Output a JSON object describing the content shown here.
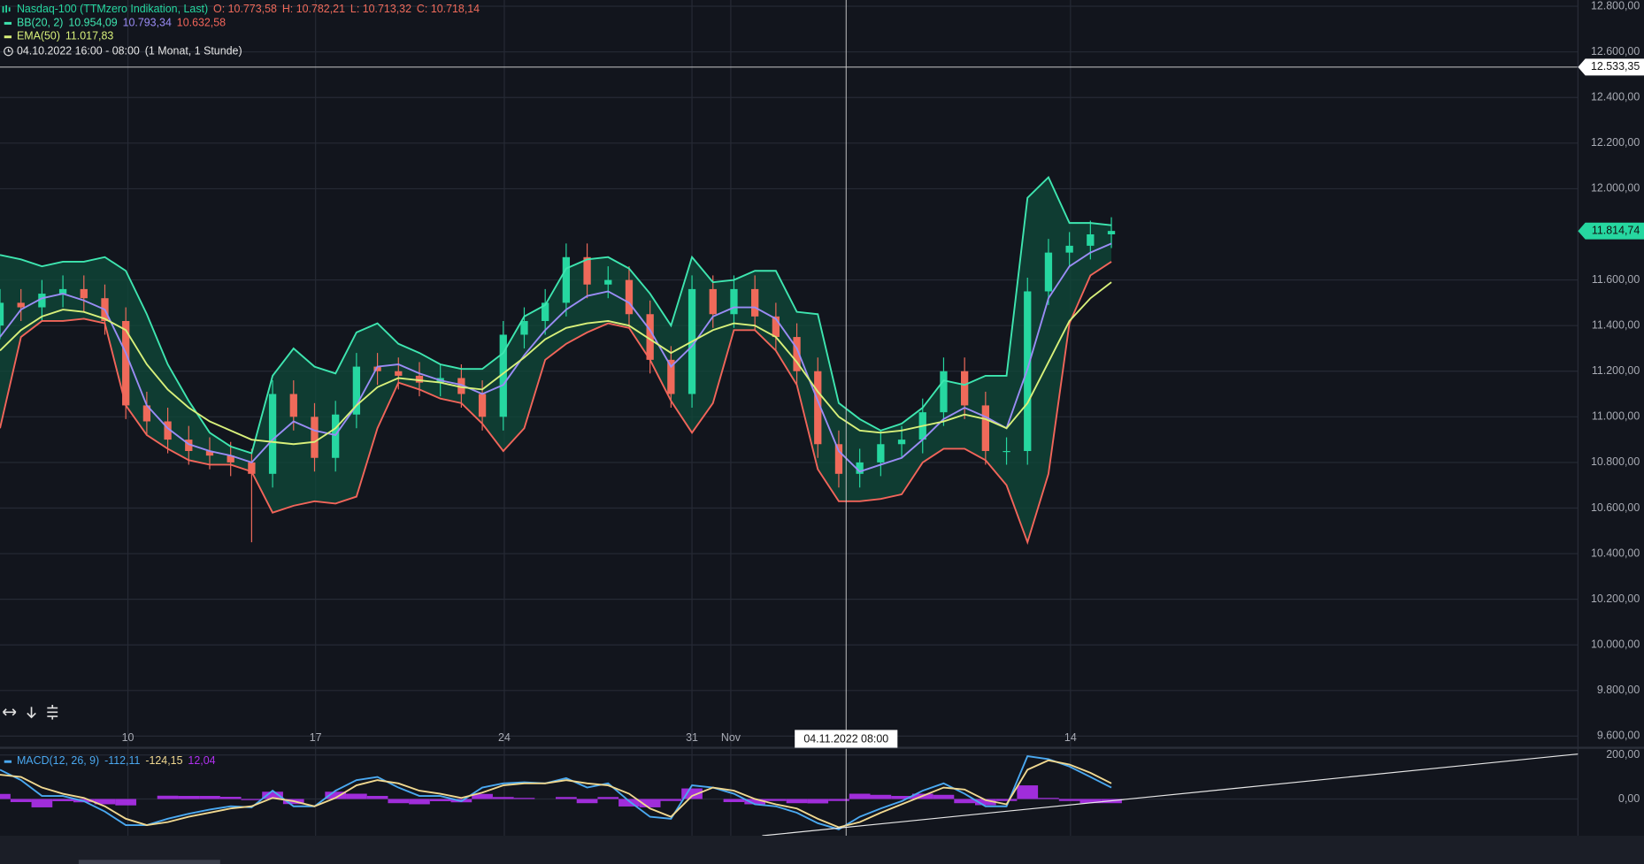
{
  "chart_data": [
    {
      "type": "candlestick",
      "title": "Nasdaq-100 (TTMzero Indikation, Last)",
      "readout": [
        "O: 10.773,58",
        "H: 10.782,21",
        "L: 10.713,32",
        "C: 10.718,14"
      ],
      "legend": [
        {
          "label": "BB(20, 2)",
          "color": "#3ee6b0",
          "values": [
            {
              "text": "10.954,09",
              "color": "#3ee6b0"
            },
            {
              "text": "10.793,34",
              "color": "#9a8cf5"
            },
            {
              "text": "10.632,58",
              "color": "#f2655a"
            }
          ]
        },
        {
          "label": "EMA(50)",
          "color": "#d8f07a",
          "values": [
            {
              "text": "11.017,83",
              "color": "#d8f07a"
            }
          ]
        }
      ],
      "range_note": [
        "04.10.2022 16:00 - 08:00",
        "(1 Monat, 1 Stunde)"
      ],
      "x": [
        0,
        1,
        2,
        3,
        4,
        5,
        6,
        7,
        8,
        9,
        10,
        11,
        12,
        13,
        14,
        15,
        16,
        17,
        18,
        19,
        20,
        21,
        22,
        23,
        24,
        25,
        26,
        27,
        28,
        29,
        30,
        31,
        32,
        33,
        34,
        35,
        36,
        37,
        38,
        39,
        40,
        41,
        42,
        43,
        44,
        45,
        46,
        47,
        48,
        49,
        50,
        51,
        52,
        53
      ],
      "xlim": [
        0,
        75.25
      ],
      "xticks": [
        {
          "value": 6.1,
          "label": "10"
        },
        {
          "value": 15.05,
          "label": "17"
        },
        {
          "value": 24.05,
          "label": "24"
        },
        {
          "value": 33,
          "label": "31"
        },
        {
          "value": 34.85,
          "label": "Nov"
        },
        {
          "value": 51.05,
          "label": "14"
        }
      ],
      "ylim": [
        9549,
        12827.5
      ],
      "yticks": [
        {
          "value": 12800,
          "label": "12.800,00"
        },
        {
          "value": 12600,
          "label": "12.600,00"
        },
        {
          "value": 12400,
          "label": "12.400,00"
        },
        {
          "value": 12200,
          "label": "12.200,00"
        },
        {
          "value": 12000,
          "label": "12.000,00"
        },
        {
          "value": 11600,
          "label": "11.600,00"
        },
        {
          "value": 11400,
          "label": "11.400,00"
        },
        {
          "value": 11200,
          "label": "11.200,00"
        },
        {
          "value": 11000,
          "label": "11.000,00"
        },
        {
          "value": 10800,
          "label": "10.800,00"
        },
        {
          "value": 10600,
          "label": "10.600,00"
        },
        {
          "value": 10400,
          "label": "10.400,00"
        },
        {
          "value": 10200,
          "label": "10.200,00"
        },
        {
          "value": 10000,
          "label": "10.000,00"
        },
        {
          "value": 9800,
          "label": "9.800,00"
        },
        {
          "value": 9600,
          "label": "9.600,00"
        }
      ],
      "grid": true,
      "up_color": "#26d7a0",
      "down_color": "#ef6a5a",
      "band_color": "#0f4a3a",
      "open": [
        11400,
        11500,
        11480,
        11540,
        11560,
        11520,
        11420,
        11050,
        10980,
        10900,
        10850,
        10830,
        10800,
        10750,
        11100,
        11000,
        10820,
        11010,
        11220,
        11200,
        11180,
        11150,
        11170,
        11100,
        11000,
        11360,
        11420,
        11500,
        11700,
        11580,
        11600,
        11450,
        11250,
        11100,
        11560,
        11450,
        11560,
        11440,
        11350,
        11200,
        10880,
        10750,
        10800,
        10880,
        10900,
        11020,
        11200,
        11050,
        10850,
        10850,
        11550,
        11720,
        11750,
        11800
      ],
      "high": [
        11560,
        11560,
        11600,
        11620,
        11620,
        11580,
        11480,
        11110,
        11040,
        10960,
        10910,
        10890,
        10860,
        11160,
        11160,
        11060,
        11070,
        11280,
        11280,
        11260,
        11240,
        11230,
        11230,
        11160,
        11420,
        11480,
        11560,
        11760,
        11760,
        11660,
        11660,
        11510,
        11310,
        11620,
        11620,
        11620,
        11620,
        11500,
        11410,
        11260,
        10940,
        10860,
        10940,
        10960,
        11080,
        11260,
        11260,
        11110,
        10910,
        11610,
        11780,
        11810,
        11860,
        11875
      ],
      "low": [
        11340,
        11420,
        11420,
        11480,
        11460,
        11360,
        10990,
        10920,
        10840,
        10790,
        10770,
        10740,
        10450,
        10690,
        10940,
        10760,
        10760,
        10950,
        11140,
        11120,
        11090,
        11090,
        11040,
        10940,
        10940,
        11300,
        11360,
        11440,
        11520,
        11520,
        11390,
        11190,
        11040,
        11040,
        11390,
        11390,
        11380,
        11290,
        11140,
        10820,
        10690,
        10690,
        10740,
        10820,
        10840,
        10960,
        10990,
        10790,
        10790,
        10790,
        11490,
        11660,
        11690,
        11740
      ],
      "close": [
        11500,
        11480,
        11540,
        11560,
        11520,
        11420,
        11050,
        10980,
        10900,
        10850,
        10830,
        10800,
        10750,
        11100,
        11000,
        10820,
        11010,
        11220,
        11200,
        11180,
        11150,
        11170,
        11100,
        11000,
        11360,
        11420,
        11500,
        11700,
        11580,
        11600,
        11450,
        11250,
        11100,
        11560,
        11450,
        11560,
        11440,
        11350,
        11200,
        10880,
        10750,
        10800,
        10880,
        10900,
        11020,
        11200,
        11050,
        10850,
        10850,
        11550,
        11720,
        11750,
        11800,
        11815
      ],
      "series": [
        {
          "color": "#3ee6b0",
          "values": [
            11710,
            11690,
            11660,
            11680,
            11680,
            11700,
            11640,
            11450,
            11230,
            11070,
            10930,
            10870,
            10840,
            11180,
            11300,
            11220,
            11190,
            11370,
            11410,
            11320,
            11280,
            11230,
            11210,
            11210,
            11280,
            11440,
            11490,
            11650,
            11690,
            11700,
            11650,
            11540,
            11400,
            11700,
            11590,
            11600,
            11640,
            11640,
            11460,
            11450,
            11060,
            10990,
            10940,
            10970,
            11040,
            11160,
            11140,
            11180,
            11180,
            11960,
            12050,
            11850,
            11850,
            11840
          ]
        },
        {
          "color": "#9a8cf5",
          "values": [
            11350,
            11470,
            11520,
            11540,
            11510,
            11470,
            11280,
            11050,
            10950,
            10880,
            10850,
            10830,
            10800,
            10900,
            10980,
            10940,
            10920,
            11050,
            11220,
            11230,
            11190,
            11160,
            11140,
            11100,
            11140,
            11270,
            11380,
            11470,
            11530,
            11550,
            11500,
            11380,
            11220,
            11310,
            11440,
            11480,
            11480,
            11430,
            11300,
            11070,
            10850,
            10760,
            10790,
            10820,
            10900,
            10990,
            11040,
            11000,
            10950,
            11210,
            11520,
            11660,
            11720,
            11760
          ]
        },
        {
          "color": "#f2655a",
          "values": [
            10950,
            11350,
            11420,
            11420,
            11430,
            11410,
            11050,
            10920,
            10860,
            10810,
            10790,
            10790,
            10760,
            10580,
            10610,
            10630,
            10620,
            10650,
            10950,
            11150,
            11120,
            11080,
            11060,
            10970,
            10850,
            10950,
            11250,
            11320,
            11370,
            11410,
            11390,
            11250,
            11070,
            10930,
            11060,
            11380,
            11380,
            11290,
            11140,
            10770,
            10630,
            10630,
            10640,
            10660,
            10800,
            10860,
            10860,
            10810,
            10700,
            10450,
            10750,
            11410,
            11620,
            11680
          ]
        },
        {
          "color": "#d8f07a",
          "values": [
            11290,
            11380,
            11440,
            11470,
            11460,
            11430,
            11380,
            11230,
            11120,
            11040,
            10980,
            10940,
            10900,
            10890,
            10880,
            10890,
            10950,
            11050,
            11130,
            11170,
            11160,
            11150,
            11130,
            11120,
            11190,
            11260,
            11340,
            11390,
            11410,
            11420,
            11400,
            11340,
            11280,
            11330,
            11380,
            11410,
            11400,
            11350,
            11240,
            11110,
            11000,
            10940,
            10930,
            10940,
            10960,
            10980,
            11010,
            10990,
            10950,
            11060,
            11240,
            11420,
            11520,
            11590
          ]
        }
      ],
      "price_tags": [
        {
          "value": 12533.35,
          "label": "12.533,35",
          "style": "crosshair"
        },
        {
          "value": 11814.74,
          "label": "11.814,74",
          "style": "last"
        }
      ],
      "crosshair": {
        "x": 40.35,
        "label": "04.11.2022 08:00"
      }
    },
    {
      "type": "line",
      "title": "MACD(12, 26, 9)",
      "legend_values": [
        {
          "text": "-112,11",
          "color": "#4aa8f0"
        },
        {
          "text": "-124,15",
          "color": "#f0d890"
        },
        {
          "text": "12,04",
          "color": "#b030f0"
        }
      ],
      "ylim": [
        -167,
        233
      ],
      "yticks": [
        {
          "value": 200,
          "label": "200,00"
        },
        {
          "value": 0,
          "label": "0,00"
        }
      ],
      "series": [
        {
          "type": "bar",
          "color": "#b030f0",
          "values": [
            23,
            -14,
            -38,
            -10,
            -15,
            -24,
            -29,
            0,
            15,
            14,
            14,
            10,
            -5,
            33,
            -23,
            0,
            33,
            24,
            14,
            -19,
            -24,
            -10,
            -15,
            23,
            9,
            5,
            0,
            9,
            -19,
            9,
            -34,
            -38,
            -9,
            48,
            0,
            -14,
            -24,
            -9,
            -19,
            -20,
            -9,
            24,
            19,
            14,
            24,
            19,
            -19,
            -28,
            -9,
            62,
            5,
            -9,
            -19,
            -19
          ]
        },
        {
          "type": "line",
          "color": "#4aa8f0",
          "values": [
            133,
            86,
            14,
            14,
            -10,
            -57,
            -119,
            -119,
            -90,
            -67,
            -48,
            -33,
            -38,
            38,
            -33,
            -33,
            38,
            86,
            100,
            52,
            14,
            14,
            -10,
            52,
            71,
            76,
            71,
            95,
            52,
            71,
            -10,
            -81,
            -90,
            62,
            52,
            24,
            -24,
            -33,
            -62,
            -110,
            -138,
            -81,
            -43,
            -10,
            38,
            71,
            24,
            -33,
            -33,
            195,
            181,
            148,
            100,
            52
          ]
        },
        {
          "type": "line",
          "color": "#f0d890",
          "values": [
            110,
            100,
            52,
            24,
            5,
            -33,
            -90,
            -119,
            -105,
            -81,
            -62,
            -43,
            -33,
            5,
            -10,
            -33,
            5,
            62,
            86,
            71,
            38,
            24,
            5,
            29,
            62,
            71,
            71,
            86,
            71,
            62,
            24,
            -43,
            -81,
            14,
            52,
            38,
            0,
            -24,
            -43,
            -90,
            -129,
            -105,
            -62,
            -24,
            14,
            52,
            43,
            -5,
            -24,
            133,
            176,
            157,
            119,
            71
          ]
        }
      ]
    }
  ]
}
